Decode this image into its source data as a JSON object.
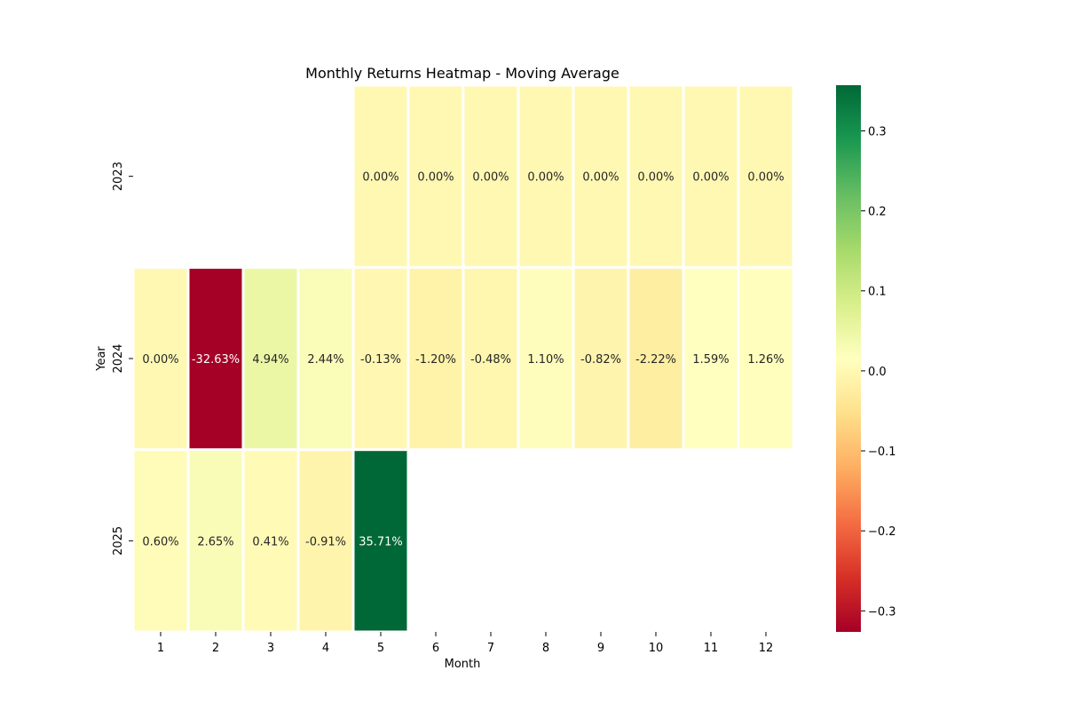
{
  "chart_data": {
    "type": "heatmap",
    "title": "Monthly Returns Heatmap - Moving Average",
    "xlabel": "Month",
    "ylabel": "Year",
    "x_categories": [
      "1",
      "2",
      "3",
      "4",
      "5",
      "6",
      "7",
      "8",
      "9",
      "10",
      "11",
      "12"
    ],
    "y_categories": [
      "2023",
      "2024",
      "2025"
    ],
    "values": [
      [
        null,
        null,
        null,
        null,
        0.0,
        0.0,
        0.0,
        0.0,
        0.0,
        0.0,
        0.0,
        0.0
      ],
      [
        0.0,
        -0.3263,
        0.0494,
        0.0244,
        -0.0013,
        -0.012,
        -0.0048,
        0.011,
        -0.0082,
        -0.0222,
        0.0159,
        0.0126
      ],
      [
        0.006,
        0.0265,
        0.0041,
        -0.0091,
        0.3571,
        null,
        null,
        null,
        null,
        null,
        null,
        null
      ]
    ],
    "labels": [
      [
        "",
        "",
        "",
        "",
        "0.00%",
        "0.00%",
        "0.00%",
        "0.00%",
        "0.00%",
        "0.00%",
        "0.00%",
        "0.00%"
      ],
      [
        "0.00%",
        "-32.63%",
        "4.94%",
        "2.44%",
        "-0.13%",
        "-1.20%",
        "-0.48%",
        "1.10%",
        "-0.82%",
        "-2.22%",
        "1.59%",
        "1.26%"
      ],
      [
        "0.60%",
        "2.65%",
        "0.41%",
        "-0.91%",
        "35.71%",
        "",
        "",
        "",
        "",
        "",
        "",
        ""
      ]
    ],
    "colormap": "RdYlGn",
    "vmin": -0.3263,
    "vmax": 0.3571,
    "colorbar_ticks": [
      0.3,
      0.2,
      0.1,
      0.0,
      -0.1,
      -0.2,
      -0.3
    ],
    "colorbar_tick_labels": [
      "0.3",
      "0.2",
      "0.1",
      "0.0",
      "−0.1",
      "−0.2",
      "−0.3"
    ],
    "colorbar_position": "right",
    "grid": false,
    "colors": {
      "cell_border": "#ffffff",
      "label_dark": "#262626",
      "label_light": "#ffffff"
    }
  }
}
